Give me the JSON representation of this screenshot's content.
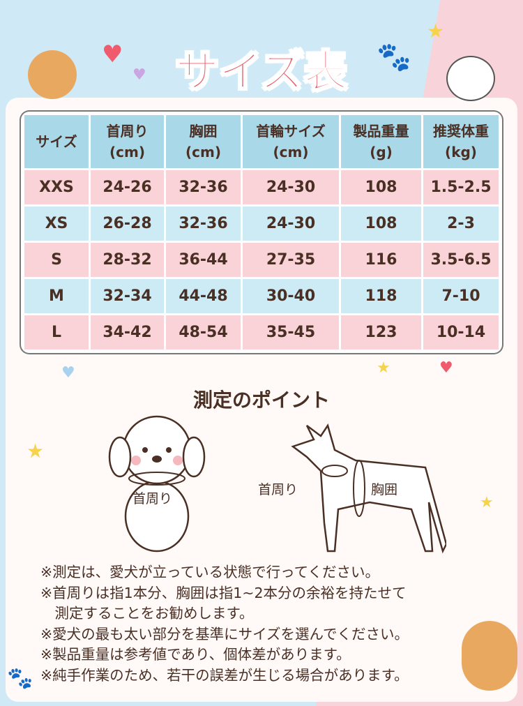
{
  "title": "サイズ表",
  "table": {
    "headers": [
      [
        "サイズ",
        ""
      ],
      [
        "首周り",
        "(cm)"
      ],
      [
        "胸囲",
        "(cm)"
      ],
      [
        "首輪サイズ",
        "(cm)"
      ],
      [
        "製品重量",
        "(g)"
      ],
      [
        "推奨体重",
        "(kg)"
      ]
    ],
    "rows": [
      [
        "XXS",
        "24-26",
        "32-36",
        "24-30",
        "108",
        "1.5-2.5"
      ],
      [
        "XS",
        "26-28",
        "32-36",
        "24-30",
        "108",
        "2-3"
      ],
      [
        "S",
        "28-32",
        "36-44",
        "27-35",
        "116",
        "3.5-6.5"
      ],
      [
        "M",
        "32-34",
        "44-48",
        "30-40",
        "118",
        "7-10"
      ],
      [
        "L",
        "34-42",
        "48-54",
        "35-45",
        "123",
        "10-14"
      ]
    ]
  },
  "measure": {
    "title": "測定のポイント",
    "neck_label_front": "首周り",
    "neck_label_side": "首周り",
    "chest_label": "胸囲"
  },
  "notes": [
    "※測定は、愛犬が立っている状態で行ってください。",
    "※首周りは指1本分、胸囲は指1~2本分の余裕を持たせて",
    "　測定することをお勧めします。",
    "※愛犬の最も太い部分を基準にサイズを選んでください。",
    "※製品重量は参考値であり、個体差があります。",
    "※純手作業のため、若干の誤差が生じる場合があります。"
  ],
  "colors": {
    "title": "#ea5a68",
    "header": "#a9d9e8",
    "row_pink": "#f9d3d7",
    "row_blue": "#ccebf4",
    "text": "#4a2f25"
  }
}
